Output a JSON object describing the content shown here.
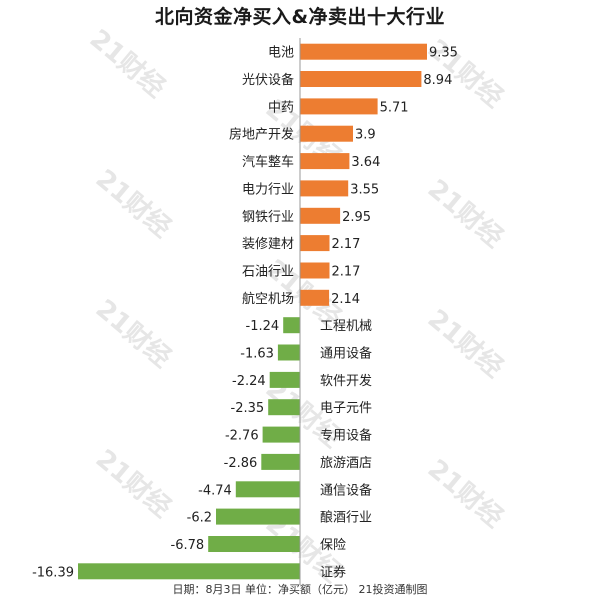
{
  "watermark": "21财经",
  "footer": "日期：8月3日 单位：净买额（亿元） 21投资通制图",
  "colors": {
    "positive": "#ED7D31",
    "negative": "#70AD47",
    "axis": "#999999",
    "label": "#222222"
  },
  "chart_data": {
    "type": "bar",
    "orientation": "horizontal",
    "title": "北向资金净买入&净卖出十大行业",
    "categories": [
      "电池",
      "光伏设备",
      "中药",
      "房地产开发",
      "汽车整车",
      "电力行业",
      "钢铁行业",
      "装修建材",
      "石油行业",
      "航空机场",
      "工程机械",
      "通用设备",
      "软件开发",
      "电子元件",
      "专用设备",
      "旅游酒店",
      "通信设备",
      "酿酒行业",
      "保险",
      "证券"
    ],
    "values": [
      9.35,
      8.94,
      5.71,
      3.9,
      3.64,
      3.55,
      2.95,
      2.17,
      2.17,
      2.14,
      -1.24,
      -1.63,
      -2.24,
      -2.35,
      -2.76,
      -2.86,
      -4.74,
      -6.2,
      -6.78,
      -16.39
    ],
    "value_labels": [
      "9.35",
      "8.94",
      "5.71",
      "3.9",
      "3.64",
      "3.55",
      "2.95",
      "2.17",
      "2.17",
      "2.14",
      "-1.24",
      "-1.63",
      "-2.24",
      "-2.35",
      "-2.76",
      "-2.86",
      "-4.74",
      "-6.2",
      "-6.78",
      "-16.39"
    ],
    "xlim": [
      -16.39,
      9.35
    ],
    "grid": false,
    "legend": "none"
  }
}
